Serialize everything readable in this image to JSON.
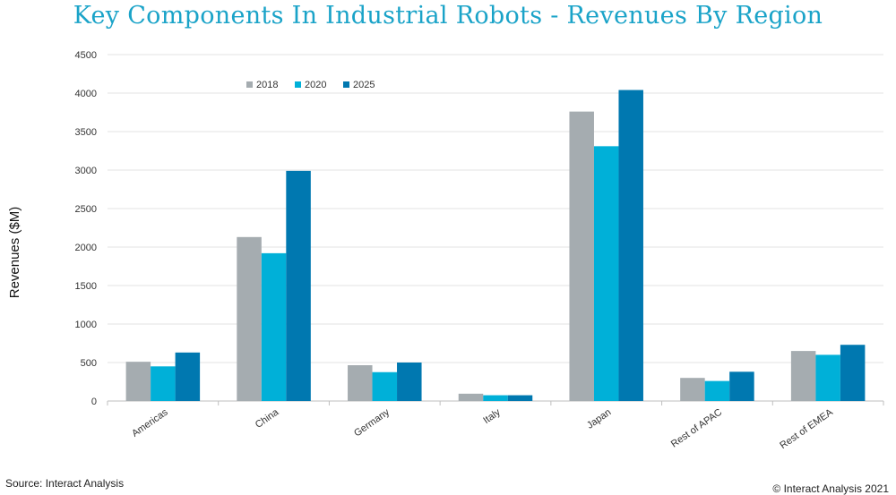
{
  "chart_data": {
    "type": "bar",
    "title": "Key Components In Industrial Robots - Revenues By Region",
    "xlabel": "",
    "ylabel": "Revenues ($M)",
    "ylim": [
      0,
      4500
    ],
    "yticks": [
      0,
      500,
      1000,
      1500,
      2000,
      2500,
      3000,
      3500,
      4000,
      4500
    ],
    "categories": [
      "Americas",
      "China",
      "Germany",
      "Italy",
      "Japan",
      "Rest of APAC",
      "Rest of EMEA"
    ],
    "series": [
      {
        "name": "2018",
        "color": "#a5acb0",
        "values": [
          510,
          2130,
          465,
          95,
          3760,
          300,
          650
        ]
      },
      {
        "name": "2020",
        "color": "#00b0d8",
        "values": [
          450,
          1920,
          375,
          75,
          3310,
          260,
          600
        ]
      },
      {
        "name": "2025",
        "color": "#0078b0",
        "values": [
          630,
          2990,
          500,
          75,
          4040,
          380,
          730
        ]
      }
    ],
    "grid": true,
    "legend_position": "top-left"
  },
  "footer": {
    "source": "Source: Interact Analysis",
    "copyright": "© Interact Analysis 2021"
  }
}
